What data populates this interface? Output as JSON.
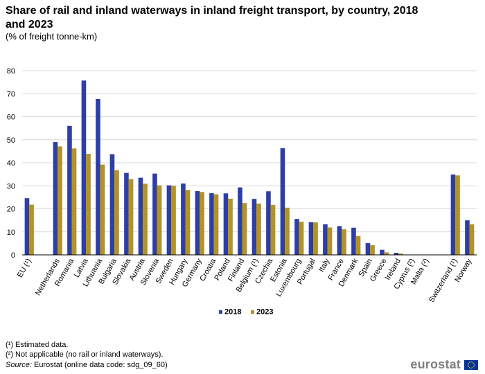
{
  "title": "Share of rail and inland waterways in inland freight transport, by country, 2018 and 2023",
  "subtitle": "(% of freight tonne-km)",
  "footnotes": [
    "(¹) Estimated data.",
    "(²) Not applicable (no rail or inland waterways)."
  ],
  "source_label": "Source:",
  "source_text": " Eurostat (online data code: sdg_09_60)",
  "logo_text": "eurostat",
  "colors": {
    "series2018": "#2d3ea5",
    "series2023": "#b39325",
    "grid": "#d9d9d9",
    "axis": "#000000"
  },
  "chart_data": {
    "type": "bar",
    "ylim": [
      0,
      80
    ],
    "yticks": [
      0,
      10,
      20,
      30,
      40,
      50,
      60,
      70,
      80
    ],
    "categories": [
      "EU (¹)",
      "",
      "Netherlands",
      "Romania",
      "Latvia",
      "Lithuania",
      "Bulgaria",
      "Slovakia",
      "Austria",
      "Slovenia",
      "Sweden",
      "Hungary",
      "Germany",
      "Croatia",
      "Poland",
      "Finland",
      "Belgium (¹)",
      "Czechia",
      "Estonia",
      "Luxembourg",
      "Portugal",
      "Italy",
      "France",
      "Denmark",
      "Spain",
      "Greece",
      "Ireland",
      "Cyprus (²)",
      "Malta (²)",
      "",
      "Switzerland (¹)",
      "Norway"
    ],
    "series": [
      {
        "name": "2018",
        "values": [
          24.6,
          null,
          49.0,
          56.0,
          75.7,
          67.7,
          43.7,
          35.6,
          33.5,
          35.3,
          30.2,
          31.0,
          27.7,
          26.8,
          26.7,
          29.3,
          24.3,
          27.6,
          46.3,
          15.6,
          14.2,
          13.3,
          12.5,
          11.8,
          5.1,
          2.2,
          0.9,
          null,
          null,
          null,
          34.9,
          15.0
        ]
      },
      {
        "name": "2023",
        "values": [
          21.8,
          null,
          47.1,
          46.2,
          43.9,
          39.2,
          36.8,
          32.9,
          30.9,
          30.2,
          30.0,
          28.2,
          27.3,
          26.3,
          24.4,
          22.5,
          22.3,
          21.7,
          20.5,
          14.4,
          14.1,
          11.9,
          11.1,
          8.2,
          4.2,
          1.1,
          0.6,
          null,
          null,
          null,
          34.5,
          13.3
        ]
      }
    ],
    "legend": [
      "2018",
      "2023"
    ],
    "legend_position": "bottom-center"
  }
}
